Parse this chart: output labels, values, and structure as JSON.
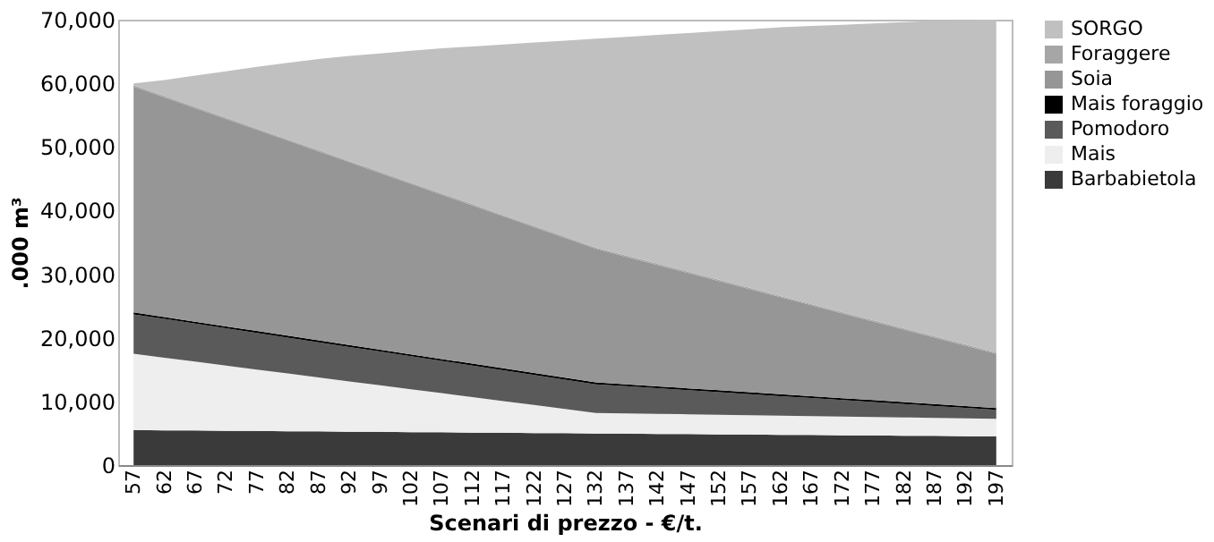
{
  "chart_data": {
    "type": "area",
    "stacked": true,
    "xlabel": "Scenari di prezzo - €/t.",
    "ylabel": ".000 m³",
    "categories": [
      "57",
      "62",
      "67",
      "72",
      "77",
      "82",
      "87",
      "92",
      "97",
      "102",
      "107",
      "112",
      "117",
      "122",
      "127",
      "132",
      "137",
      "142",
      "147",
      "152",
      "157",
      "162",
      "167",
      "172",
      "177",
      "182",
      "187",
      "192",
      "197"
    ],
    "ylim": [
      0,
      70000
    ],
    "yticks": [
      {
        "value": 0,
        "label": "0"
      },
      {
        "value": 10000,
        "label": "10,000"
      },
      {
        "value": 20000,
        "label": "20,000"
      },
      {
        "value": 30000,
        "label": "30,000"
      },
      {
        "value": 40000,
        "label": "40,000"
      },
      {
        "value": 50000,
        "label": "50,000"
      },
      {
        "value": 60000,
        "label": "60,000"
      },
      {
        "value": 70000,
        "label": "70,000"
      }
    ],
    "grid": false,
    "legend": "right",
    "series": [
      {
        "name": "Barbabietola",
        "color": "#3a3a3a",
        "values": [
          5500,
          5460,
          5430,
          5390,
          5360,
          5320,
          5290,
          5250,
          5220,
          5180,
          5150,
          5110,
          5080,
          5040,
          5010,
          4970,
          4940,
          4900,
          4870,
          4830,
          4800,
          4760,
          4730,
          4690,
          4660,
          4620,
          4590,
          4550,
          4520
        ]
      },
      {
        "name": "Mais",
        "color": "#eeeeee",
        "values": [
          12000,
          11420,
          10830,
          10250,
          9660,
          9080,
          8490,
          7910,
          7320,
          6740,
          6150,
          5570,
          4980,
          4400,
          3810,
          3230,
          3190,
          3160,
          3120,
          3090,
          3050,
          3020,
          2980,
          2950,
          2910,
          2880,
          2840,
          2810,
          2770
        ]
      },
      {
        "name": "Pomodoro",
        "color": "#5a5a5a",
        "values": [
          6200,
          6090,
          5970,
          5860,
          5750,
          5640,
          5520,
          5410,
          5300,
          5180,
          5070,
          4960,
          4840,
          4730,
          4620,
          4500,
          4260,
          4020,
          3780,
          3540,
          3300,
          3060,
          2820,
          2580,
          2340,
          2100,
          1860,
          1620,
          1380
        ]
      },
      {
        "name": "Mais foraggio",
        "color": "#000000",
        "values": [
          300,
          300,
          300,
          300,
          300,
          300,
          300,
          300,
          300,
          300,
          300,
          300,
          300,
          300,
          300,
          300,
          300,
          300,
          300,
          300,
          300,
          300,
          300,
          300,
          300,
          300,
          300,
          300,
          300
        ]
      },
      {
        "name": "Soia",
        "color": "#969696",
        "values": [
          35500,
          34530,
          33570,
          32600,
          31630,
          30670,
          29700,
          28730,
          27760,
          26800,
          25830,
          24860,
          23900,
          22930,
          21960,
          21000,
          20040,
          19080,
          18120,
          17160,
          16200,
          15240,
          14280,
          13320,
          12360,
          11400,
          10440,
          9480,
          8520
        ]
      },
      {
        "name": "Foraggere",
        "color": "#a6a6a6",
        "values": [
          200,
          200,
          200,
          200,
          200,
          200,
          200,
          200,
          200,
          200,
          200,
          200,
          200,
          200,
          200,
          200,
          200,
          200,
          200,
          200,
          200,
          200,
          200,
          200,
          200,
          200,
          200,
          200,
          200
        ]
      },
      {
        "name": "SORGO",
        "color": "#c0c0c0",
        "values": [
          300,
          2500,
          4900,
          7300,
          9700,
          12000,
          14300,
          16500,
          18600,
          20700,
          22800,
          24800,
          26800,
          28800,
          30800,
          32800,
          34370,
          35940,
          37510,
          39080,
          40650,
          42220,
          43690,
          45160,
          46630,
          48100,
          49570,
          50940,
          52310
        ]
      }
    ]
  }
}
